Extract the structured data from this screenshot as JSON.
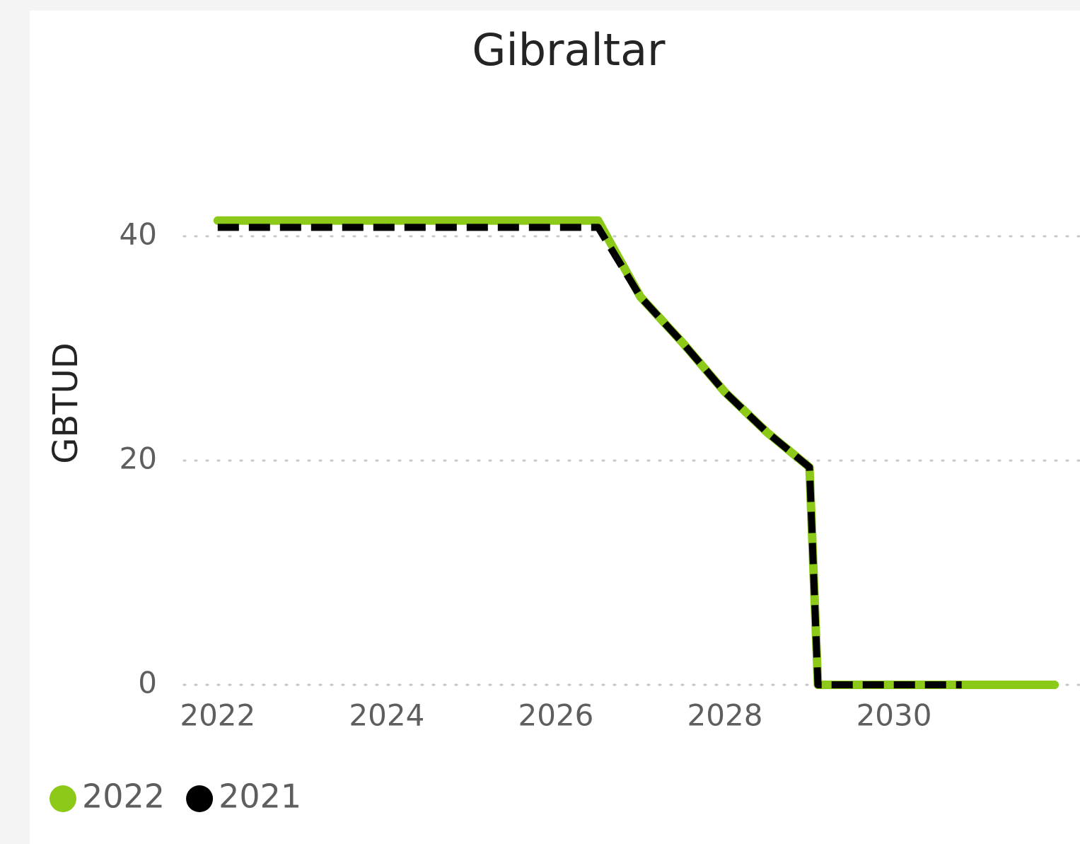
{
  "chart_data": {
    "type": "line",
    "title": "Gibraltar",
    "ylabel": "GBTUD",
    "x": [
      2022,
      2026.5,
      2027,
      2027.5,
      2028,
      2028.5,
      2029,
      2029.1,
      2030.8,
      2031.9
    ],
    "series": [
      {
        "name": "2022",
        "color": "#8dc919",
        "dash": false,
        "values": [
          41.4,
          41.4,
          34.6,
          30.5,
          26.1,
          22.5,
          19.4,
          0,
          0,
          0
        ]
      },
      {
        "name": "2021",
        "color": "#000000",
        "dash": true,
        "values": [
          40.8,
          40.8,
          34.6,
          30.5,
          26.1,
          22.5,
          19.4,
          0,
          0,
          null
        ]
      }
    ],
    "xlim": [
      2021.6,
      2032.2
    ],
    "xticks": [
      2022,
      2024,
      2026,
      2028,
      2030
    ],
    "ylim": [
      0,
      50
    ],
    "yticks": [
      0,
      20,
      40
    ],
    "grid": true,
    "legend": "bottom-left"
  }
}
